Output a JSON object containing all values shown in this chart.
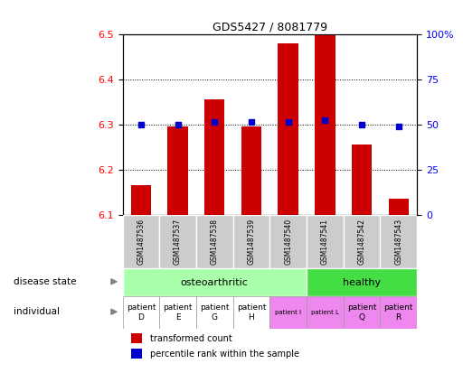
{
  "title": "GDS5427 / 8081779",
  "samples": [
    "GSM1487536",
    "GSM1487537",
    "GSM1487538",
    "GSM1487539",
    "GSM1487540",
    "GSM1487541",
    "GSM1487542",
    "GSM1487543"
  ],
  "bar_values": [
    6.165,
    6.295,
    6.355,
    6.295,
    6.48,
    6.5,
    6.255,
    6.135
  ],
  "bar_base": 6.1,
  "percentile_values": [
    6.3,
    6.3,
    6.305,
    6.305,
    6.305,
    6.31,
    6.3,
    6.295
  ],
  "ylim_left": [
    6.1,
    6.5
  ],
  "ylim_right": [
    0,
    100
  ],
  "yticks_left": [
    6.1,
    6.2,
    6.3,
    6.4,
    6.5
  ],
  "yticks_right": [
    0,
    25,
    50,
    75,
    100
  ],
  "bar_color": "#cc0000",
  "percentile_color": "#0000cc",
  "sample_bg_color": "#cccccc",
  "oa_color": "#aaffaa",
  "healthy_color": "#44dd44",
  "indiv_white_color": "#ffffff",
  "indiv_pink_color": "#ee88ee",
  "legend_red": "#cc0000",
  "legend_blue": "#0000cc",
  "oa_count": 5,
  "healthy_count": 3,
  "indiv_labels": [
    "patient\nD",
    "patient\nE",
    "patient\nG",
    "patient\nH",
    "patient I",
    "patient L",
    "patient\nQ",
    "patient\nR"
  ],
  "indiv_small": [
    false,
    false,
    false,
    false,
    true,
    true,
    false,
    false
  ],
  "indiv_pink_idx": [
    4,
    5,
    6,
    7
  ]
}
